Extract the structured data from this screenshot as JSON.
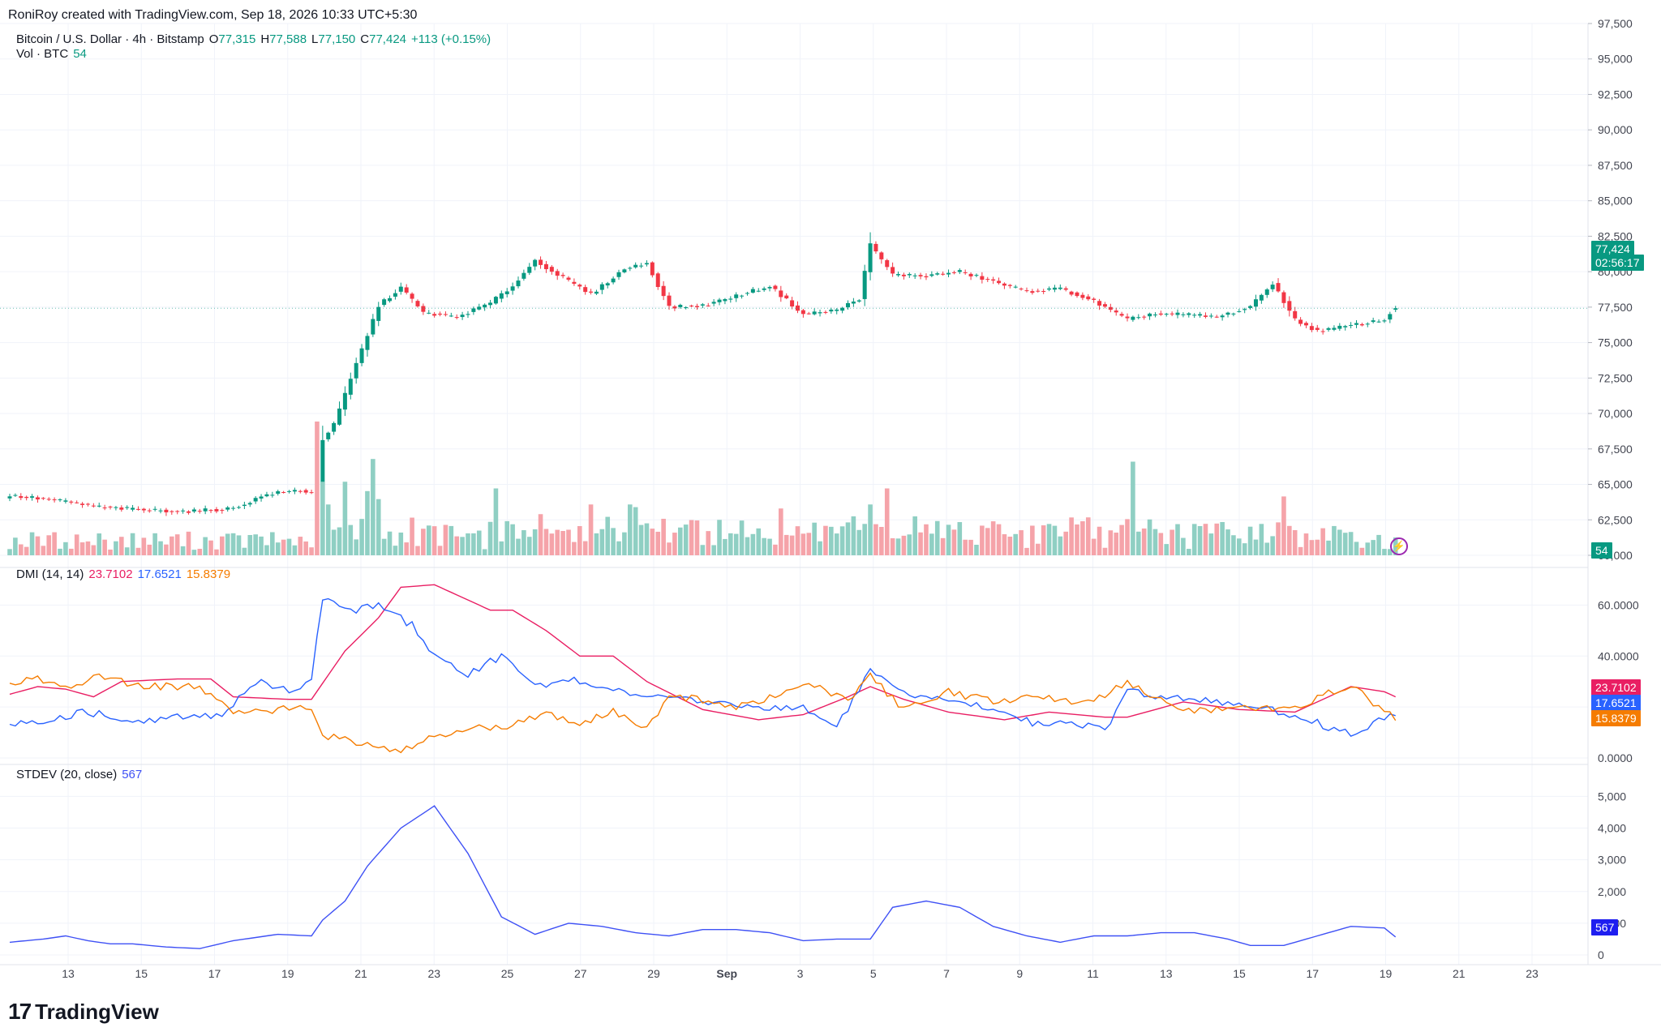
{
  "header": {
    "credit": "RoniRoy created with TradingView.com, Sep 18, 2026 10:33 UTC+5:30",
    "symbol": "Bitcoin / U.S. Dollar · 4h · Bitstamp",
    "o_label": "O",
    "o": "77,315",
    "h_label": "H",
    "h": "77,588",
    "l_label": "L",
    "l": "77,150",
    "c_label": "C",
    "c": "77,424",
    "change": "+113 (+0.15%)",
    "vol_label": "Vol · BTC",
    "vol_value": "54",
    "dmi_label": "DMI (14, 14)",
    "dmi_adx": "23.7102",
    "dmi_plus": "17.6521",
    "dmi_minus": "15.8379",
    "stdev_label": "STDEV (20, close)",
    "stdev_value": "567"
  },
  "badges": {
    "price": "77,424",
    "countdown": "02:56:17",
    "volume": "54",
    "adx": "23.7102",
    "plus": "17.6521",
    "minus": "15.8379",
    "stdev": "567"
  },
  "logo": {
    "mark": "17",
    "text": "TradingView"
  },
  "colors": {
    "up": "#089981",
    "down": "#f23645",
    "vol_up": "#8fcfc3",
    "vol_down": "#f5a3a9",
    "adx": "#e91e63",
    "plus": "#2962ff",
    "minus": "#f57c00",
    "stdev": "#3f51f5"
  },
  "chart_data": [
    {
      "type": "candlestick",
      "title": "Bitcoin / U.S. Dollar · 4h · Bitstamp",
      "ylim": [
        60000,
        97500
      ],
      "yticks": [
        "97,500",
        "95,000",
        "92,500",
        "90,000",
        "87,500",
        "85,000",
        "82,500",
        "80,000",
        "77,500",
        "75,000",
        "72,500",
        "70,000",
        "67,500",
        "65,000",
        "62,500",
        "60,000"
      ],
      "x_ticks": [
        "13",
        "15",
        "17",
        "19",
        "21",
        "23",
        "25",
        "27",
        "29",
        "Sep",
        "3",
        "5",
        "7",
        "9",
        "11",
        "13",
        "15",
        "17",
        "19",
        "21",
        "23"
      ],
      "close_anchors": [
        [
          0,
          64200
        ],
        [
          8,
          63900
        ],
        [
          16,
          63400
        ],
        [
          24,
          63200
        ],
        [
          32,
          63100
        ],
        [
          40,
          63300
        ],
        [
          46,
          64300
        ],
        [
          52,
          64600
        ],
        [
          55,
          64300
        ],
        [
          56,
          68200
        ],
        [
          58,
          69200
        ],
        [
          62,
          73500
        ],
        [
          66,
          77600
        ],
        [
          70,
          78900
        ],
        [
          74,
          77100
        ],
        [
          80,
          76800
        ],
        [
          86,
          77800
        ],
        [
          90,
          79000
        ],
        [
          94,
          80800
        ],
        [
          98,
          79800
        ],
        [
          104,
          78400
        ],
        [
          110,
          80200
        ],
        [
          114,
          80600
        ],
        [
          118,
          77500
        ],
        [
          124,
          77600
        ],
        [
          130,
          78300
        ],
        [
          136,
          79000
        ],
        [
          142,
          77000
        ],
        [
          148,
          77300
        ],
        [
          152,
          78100
        ],
        [
          154,
          81900
        ],
        [
          158,
          79800
        ],
        [
          164,
          79700
        ],
        [
          170,
          80000
        ],
        [
          176,
          79300
        ],
        [
          182,
          78600
        ],
        [
          188,
          78800
        ],
        [
          194,
          77900
        ],
        [
          200,
          76600
        ],
        [
          204,
          77000
        ],
        [
          210,
          77000
        ],
        [
          216,
          76800
        ],
        [
          222,
          77500
        ],
        [
          226,
          79200
        ],
        [
          230,
          76600
        ],
        [
          234,
          75800
        ],
        [
          240,
          76200
        ],
        [
          246,
          76600
        ],
        [
          248,
          77424
        ]
      ],
      "last": {
        "open": 77315,
        "high": 77588,
        "low": 77150,
        "close": 77424
      }
    },
    {
      "type": "bar",
      "title": "Vol · BTC",
      "last_value": 54,
      "spike_candles": [
        [
          55,
          100
        ],
        [
          56,
          55
        ],
        [
          57,
          38
        ],
        [
          60,
          55
        ],
        [
          64,
          48
        ],
        [
          65,
          72
        ],
        [
          66,
          42
        ],
        [
          87,
          50
        ],
        [
          104,
          38
        ],
        [
          111,
          38
        ],
        [
          112,
          36
        ],
        [
          138,
          35
        ],
        [
          154,
          38
        ],
        [
          157,
          50
        ],
        [
          201,
          70
        ],
        [
          228,
          44
        ]
      ]
    },
    {
      "type": "line",
      "title": "DMI (14, 14)",
      "ylim": [
        0,
        70
      ],
      "yticks": [
        "60.0000",
        "40.0000",
        "20.0000",
        "0.0000"
      ],
      "series": [
        {
          "name": "ADX",
          "last_value": 23.7102,
          "anchors": [
            [
              0,
              25
            ],
            [
              5,
              28
            ],
            [
              10,
              27
            ],
            [
              15,
              24
            ],
            [
              20,
              30
            ],
            [
              30,
              31
            ],
            [
              36,
              31
            ],
            [
              40,
              24
            ],
            [
              50,
              23
            ],
            [
              54,
              23
            ],
            [
              60,
              42
            ],
            [
              66,
              55
            ],
            [
              70,
              67
            ],
            [
              76,
              68
            ],
            [
              86,
              58
            ],
            [
              90,
              58
            ],
            [
              96,
              50
            ],
            [
              102,
              40
            ],
            [
              108,
              40
            ],
            [
              114,
              30
            ],
            [
              124,
              19
            ],
            [
              134,
              15
            ],
            [
              142,
              17
            ],
            [
              150,
              24
            ],
            [
              154,
              28
            ],
            [
              160,
              23
            ],
            [
              168,
              18
            ],
            [
              178,
              15
            ],
            [
              186,
              18
            ],
            [
              196,
              16
            ],
            [
              200,
              16
            ],
            [
              210,
              22
            ],
            [
              220,
              19
            ],
            [
              230,
              18
            ],
            [
              240,
              28
            ],
            [
              246,
              26
            ],
            [
              248,
              24
            ]
          ]
        },
        {
          "name": "+DI",
          "last_value": 17.6521,
          "anchors": [
            [
              0,
              13
            ],
            [
              6,
              15
            ],
            [
              14,
              18
            ],
            [
              24,
              14
            ],
            [
              30,
              16
            ],
            [
              38,
              17
            ],
            [
              44,
              30
            ],
            [
              50,
              26
            ],
            [
              54,
              30
            ],
            [
              56,
              63
            ],
            [
              62,
              58
            ],
            [
              66,
              60
            ],
            [
              72,
              52
            ],
            [
              76,
              40
            ],
            [
              82,
              33
            ],
            [
              88,
              40
            ],
            [
              94,
              28
            ],
            [
              100,
              31
            ],
            [
              106,
              27
            ],
            [
              114,
              25
            ],
            [
              118,
              23
            ],
            [
              128,
              22
            ],
            [
              134,
              19
            ],
            [
              142,
              20
            ],
            [
              148,
              12
            ],
            [
              154,
              34
            ],
            [
              160,
              25
            ],
            [
              166,
              23
            ],
            [
              176,
              20
            ],
            [
              184,
              13
            ],
            [
              190,
              14
            ],
            [
              196,
              11
            ],
            [
              200,
              26
            ],
            [
              210,
              23
            ],
            [
              220,
              21
            ],
            [
              230,
              17
            ],
            [
              240,
              9
            ],
            [
              246,
              16
            ],
            [
              248,
              17.65
            ]
          ]
        },
        {
          "name": "-DI",
          "last_value": 15.8379,
          "anchors": [
            [
              0,
              28
            ],
            [
              4,
              32
            ],
            [
              10,
              27
            ],
            [
              16,
              32
            ],
            [
              24,
              28
            ],
            [
              34,
              28
            ],
            [
              40,
              18
            ],
            [
              46,
              18
            ],
            [
              50,
              20
            ],
            [
              54,
              19
            ],
            [
              56,
              9
            ],
            [
              64,
              5
            ],
            [
              70,
              3
            ],
            [
              76,
              8
            ],
            [
              82,
              12
            ],
            [
              88,
              12
            ],
            [
              96,
              17
            ],
            [
              102,
              14
            ],
            [
              108,
              18
            ],
            [
              114,
              12
            ],
            [
              118,
              24
            ],
            [
              124,
              23
            ],
            [
              130,
              20
            ],
            [
              134,
              22
            ],
            [
              142,
              30
            ],
            [
              150,
              23
            ],
            [
              154,
              32
            ],
            [
              160,
              19
            ],
            [
              168,
              26
            ],
            [
              176,
              22
            ],
            [
              184,
              24
            ],
            [
              192,
              21
            ],
            [
              200,
              29
            ],
            [
              210,
              18
            ],
            [
              220,
              19
            ],
            [
              230,
              20
            ],
            [
              240,
              29
            ],
            [
              246,
              18
            ],
            [
              248,
              15.84
            ]
          ]
        }
      ]
    },
    {
      "type": "line",
      "title": "STDEV (20, close)",
      "ylim": [
        0,
        5000
      ],
      "yticks": [
        "5,000",
        "4,000",
        "3,000",
        "2,000",
        "1,000",
        "0"
      ],
      "series": [
        {
          "name": "STDEV",
          "last_value": 567,
          "anchors": [
            [
              0,
              400
            ],
            [
              6,
              500
            ],
            [
              10,
              600
            ],
            [
              14,
              450
            ],
            [
              18,
              350
            ],
            [
              22,
              350
            ],
            [
              28,
              250
            ],
            [
              34,
              200
            ],
            [
              40,
              450
            ],
            [
              48,
              650
            ],
            [
              54,
              600
            ],
            [
              56,
              1100
            ],
            [
              60,
              1700
            ],
            [
              64,
              2800
            ],
            [
              70,
              4000
            ],
            [
              76,
              4700
            ],
            [
              82,
              3200
            ],
            [
              88,
              1200
            ],
            [
              94,
              650
            ],
            [
              100,
              1000
            ],
            [
              106,
              900
            ],
            [
              112,
              700
            ],
            [
              118,
              600
            ],
            [
              124,
              800
            ],
            [
              130,
              800
            ],
            [
              136,
              700
            ],
            [
              142,
              450
            ],
            [
              148,
              500
            ],
            [
              154,
              500
            ],
            [
              158,
              1500
            ],
            [
              164,
              1700
            ],
            [
              170,
              1500
            ],
            [
              176,
              900
            ],
            [
              182,
              600
            ],
            [
              188,
              400
            ],
            [
              194,
              600
            ],
            [
              200,
              600
            ],
            [
              206,
              700
            ],
            [
              212,
              700
            ],
            [
              218,
              500
            ],
            [
              222,
              300
            ],
            [
              228,
              300
            ],
            [
              234,
              600
            ],
            [
              240,
              900
            ],
            [
              246,
              850
            ],
            [
              248,
              567
            ]
          ]
        }
      ]
    }
  ]
}
